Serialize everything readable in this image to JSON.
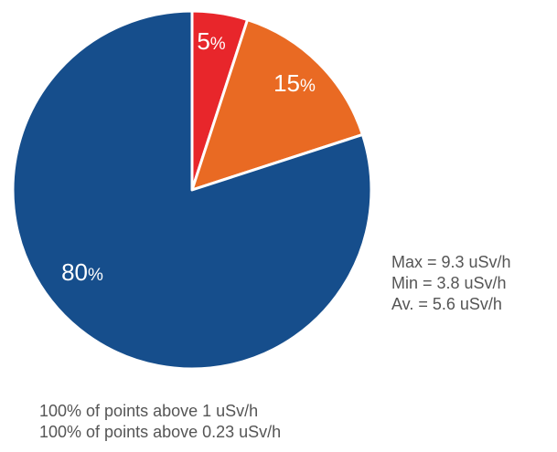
{
  "chart_data": {
    "type": "pie",
    "slices": [
      {
        "label": "5",
        "unit": "%",
        "value": 5,
        "color": "#e8262b"
      },
      {
        "label": "15",
        "unit": "%",
        "value": 15,
        "color": "#e96a23"
      },
      {
        "label": "80",
        "unit": "%",
        "value": 80,
        "color": "#164e8c"
      }
    ],
    "start_angle_deg": 0,
    "direction": "clockwise",
    "slice_border_color": "#ffffff"
  },
  "stats": {
    "max": "Max = 9.3 uSv/h",
    "min": "Min = 3.8 uSv/h",
    "avg": "Av. = 5.6 uSv/h"
  },
  "notes": [
    "100% of points above 1 uSv/h",
    "100% of points above 0.23 uSv/h"
  ]
}
